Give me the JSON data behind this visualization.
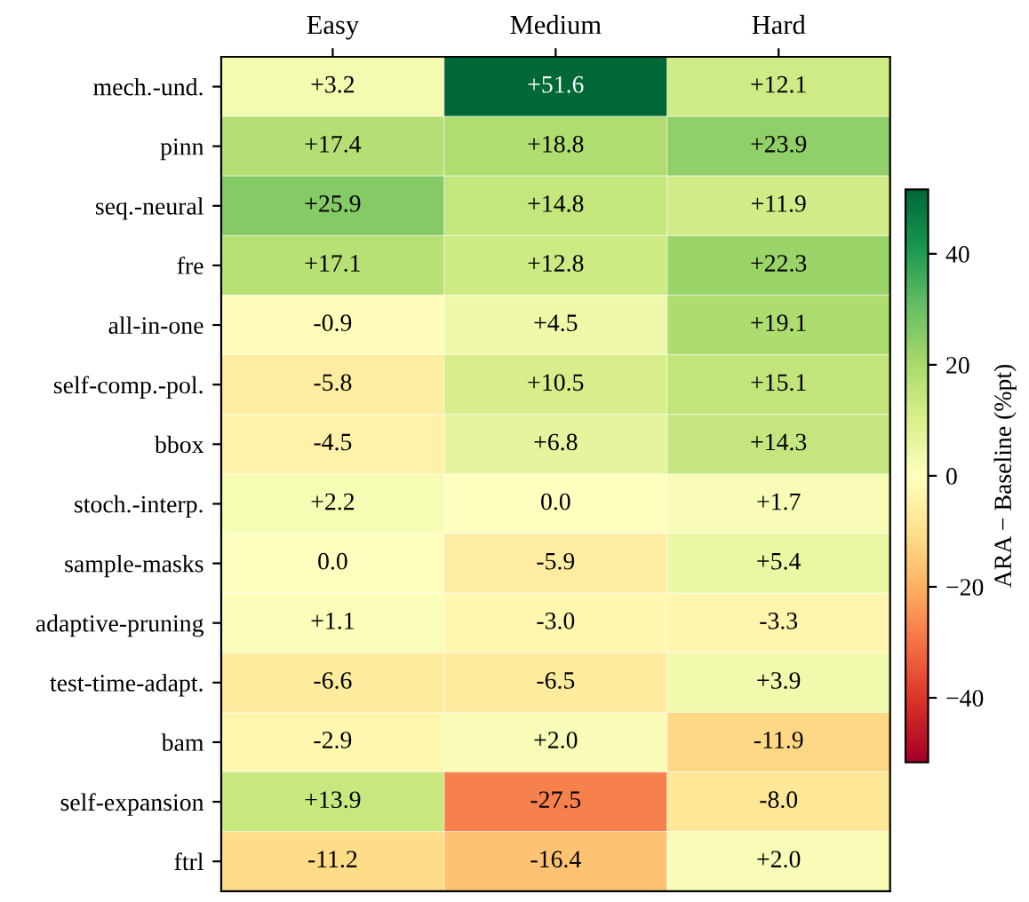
{
  "chart_data": {
    "type": "heatmap",
    "categories": [
      "Easy",
      "Medium",
      "Hard"
    ],
    "y_categories": [
      "mech.-und.",
      "pinn",
      "seq.-neural",
      "fre",
      "all-in-one",
      "self-comp.-pol.",
      "bbox",
      "stoch.-interp.",
      "sample-masks",
      "adaptive-pruning",
      "test-time-adapt.",
      "bam",
      "self-expansion",
      "ftrl"
    ],
    "cells": [
      [
        3.2,
        51.6,
        12.1
      ],
      [
        17.4,
        18.8,
        23.9
      ],
      [
        25.9,
        14.8,
        11.9
      ],
      [
        17.1,
        12.8,
        22.3
      ],
      [
        -0.9,
        4.5,
        19.1
      ],
      [
        -5.8,
        10.5,
        15.1
      ],
      [
        -4.5,
        6.8,
        14.3
      ],
      [
        2.2,
        0.0,
        1.7
      ],
      [
        0.0,
        -5.9,
        5.4
      ],
      [
        1.1,
        -3.0,
        -3.3
      ],
      [
        -6.6,
        -6.5,
        3.9
      ],
      [
        -2.9,
        2.0,
        -11.9
      ],
      [
        13.9,
        -27.5,
        -8.0
      ],
      [
        -11.2,
        -16.4,
        2.0
      ]
    ],
    "cell_labels": [
      [
        "+3.2",
        "+51.6",
        "+12.1"
      ],
      [
        "+17.4",
        "+18.8",
        "+23.9"
      ],
      [
        "+25.9",
        "+14.8",
        "+11.9"
      ],
      [
        "+17.1",
        "+12.8",
        "+22.3"
      ],
      [
        "-0.9",
        "+4.5",
        "+19.1"
      ],
      [
        "-5.8",
        "+10.5",
        "+15.1"
      ],
      [
        "-4.5",
        "+6.8",
        "+14.3"
      ],
      [
        "+2.2",
        "0.0",
        "+1.7"
      ],
      [
        "0.0",
        "-5.9",
        "+5.4"
      ],
      [
        "+1.1",
        "-3.0",
        "-3.3"
      ],
      [
        "-6.6",
        "-6.5",
        "+3.9"
      ],
      [
        "-2.9",
        "+2.0",
        "-11.9"
      ],
      [
        "+13.9",
        "-27.5",
        "-8.0"
      ],
      [
        "-11.2",
        "-16.4",
        "+2.0"
      ]
    ],
    "clim": [
      -51.6,
      51.6
    ],
    "cticks": [
      {
        "value": -40,
        "label": "−40"
      },
      {
        "value": -20,
        "label": "−20"
      },
      0,
      20,
      40
    ],
    "clabel": "ARA − Baseline (%pt)"
  }
}
